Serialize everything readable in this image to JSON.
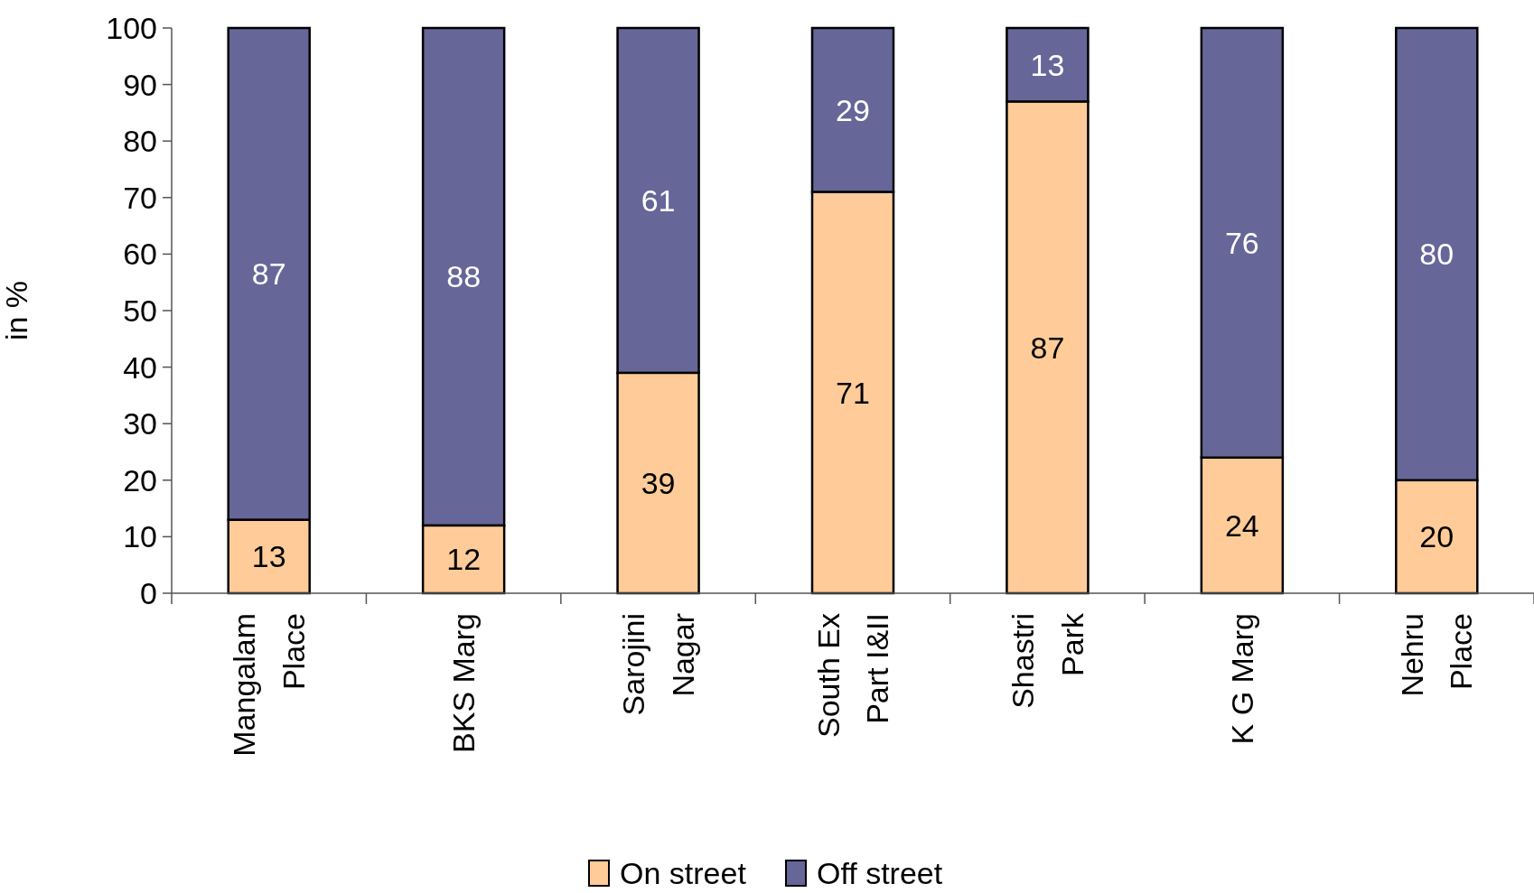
{
  "chart_data": {
    "type": "bar",
    "stacked": true,
    "ylabel": "in %",
    "categories": [
      "Mangalam Place",
      "BKS Marg",
      "Sarojini Nagar",
      "South Ex Part I&II",
      "Shastri Park",
      "K G Marg",
      "Nehru Place"
    ],
    "series": [
      {
        "name": "On street",
        "color": "#ffcc99",
        "values": [
          13,
          12,
          39,
          71,
          87,
          24,
          20
        ]
      },
      {
        "name": "Off street",
        "color": "#666699",
        "values": [
          87,
          88,
          61,
          29,
          13,
          76,
          80
        ]
      }
    ],
    "ylim": [
      0,
      100
    ],
    "yticks": [
      0,
      10,
      20,
      30,
      40,
      50,
      60,
      70,
      80,
      90,
      100
    ],
    "data_labels": true,
    "grid": false,
    "legend": "bottom"
  }
}
